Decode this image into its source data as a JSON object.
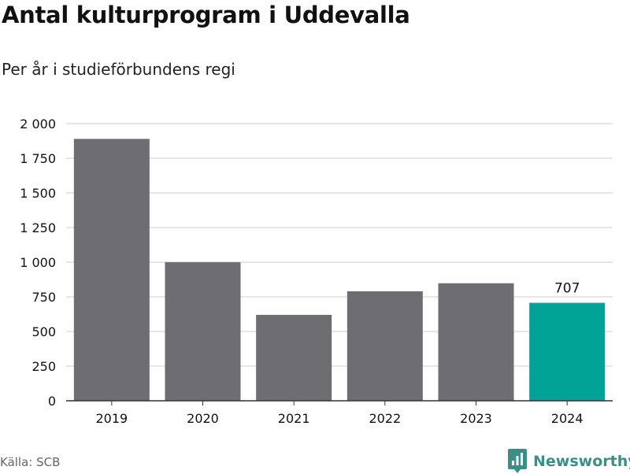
{
  "colors": {
    "bar": "#6e6d72",
    "highlight": "#00a396",
    "grid": "#dddddd",
    "axis": "#333333",
    "text": "#111111",
    "brand": "#3a8f86"
  },
  "chart_data": {
    "type": "bar",
    "title": "Antal kulturprogram i Uddevalla",
    "subtitle": "Per år i studieförbundens regi",
    "xlabel": "",
    "ylabel": "",
    "categories": [
      "2019",
      "2020",
      "2021",
      "2022",
      "2023",
      "2024"
    ],
    "values": [
      1890,
      1000,
      620,
      790,
      848,
      707
    ],
    "highlight_index": 5,
    "data_labels": [
      {
        "index": 5,
        "text": "707"
      }
    ],
    "ylim": [
      0,
      2000
    ],
    "yticks": [
      0,
      250,
      500,
      750,
      1000,
      1250,
      1500,
      1750,
      2000
    ],
    "ytick_labels": [
      "0",
      "250",
      "500",
      "750",
      "1 000",
      "1 250",
      "1 500",
      "1 750",
      "2 000"
    ],
    "grid": true,
    "legend": "none"
  },
  "footer": {
    "source": "Källa: SCB",
    "brand": "Newsworthy",
    "brand_icon": "newsworthy-logo-icon"
  }
}
